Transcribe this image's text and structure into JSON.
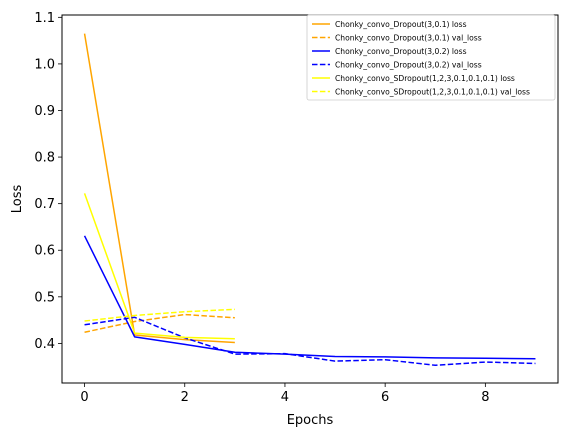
{
  "chart_data": {
    "type": "line",
    "xlabel": "Epochs",
    "ylabel": "Loss",
    "xlim": [
      -0.45,
      9.45
    ],
    "ylim": [
      0.315,
      1.105
    ],
    "xticks": [
      0,
      2,
      4,
      6,
      8
    ],
    "yticks": [
      0.4,
      0.5,
      0.6,
      0.7,
      0.8,
      0.9,
      1.0,
      1.1
    ],
    "xtick_labels": [
      "0",
      "2",
      "4",
      "6",
      "8"
    ],
    "ytick_labels": [
      "0.4",
      "0.5",
      "0.6",
      "0.7",
      "0.8",
      "0.9",
      "1.0",
      "1.1"
    ],
    "grid": false,
    "legend_position": "top-right",
    "series": [
      {
        "name": "Chonky_convo_Dropout(3,0.1) loss",
        "color": "#ffa500",
        "style": "solid",
        "x": [
          0,
          1,
          2,
          3
        ],
        "y": [
          1.065,
          0.418,
          0.408,
          0.402
        ]
      },
      {
        "name": "Chonky_convo_Dropout(3,0.1) val_loss",
        "color": "#ffa500",
        "style": "dashed",
        "x": [
          0,
          1,
          2,
          3
        ],
        "y": [
          0.424,
          0.447,
          0.462,
          0.455
        ]
      },
      {
        "name": "Chonky_convo_Dropout(3,0.2) loss",
        "color": "#0000ff",
        "style": "solid",
        "x": [
          0,
          1,
          2,
          3,
          4,
          5,
          6,
          7,
          8,
          9
        ],
        "y": [
          0.631,
          0.414,
          0.398,
          0.381,
          0.377,
          0.372,
          0.371,
          0.369,
          0.368,
          0.367
        ]
      },
      {
        "name": "Chonky_convo_Dropout(3,0.2) val_loss",
        "color": "#0000ff",
        "style": "dashed",
        "x": [
          0,
          1,
          2,
          3,
          4,
          5,
          6,
          7,
          8,
          9
        ],
        "y": [
          0.44,
          0.456,
          0.412,
          0.377,
          0.378,
          0.362,
          0.365,
          0.353,
          0.36,
          0.357
        ]
      },
      {
        "name": "Chonky_convo_SDropout(1,2,3,0.1,0.1,0.1) loss",
        "color": "#ffff00",
        "style": "solid",
        "x": [
          0,
          1,
          2,
          3
        ],
        "y": [
          0.722,
          0.422,
          0.413,
          0.41
        ]
      },
      {
        "name": "Chonky_convo_SDropout(1,2,3,0.1,0.1,0.1) val_loss",
        "color": "#ffff00",
        "style": "dashed",
        "x": [
          0,
          1,
          2,
          3
        ],
        "y": [
          0.448,
          0.46,
          0.468,
          0.473
        ]
      }
    ]
  }
}
